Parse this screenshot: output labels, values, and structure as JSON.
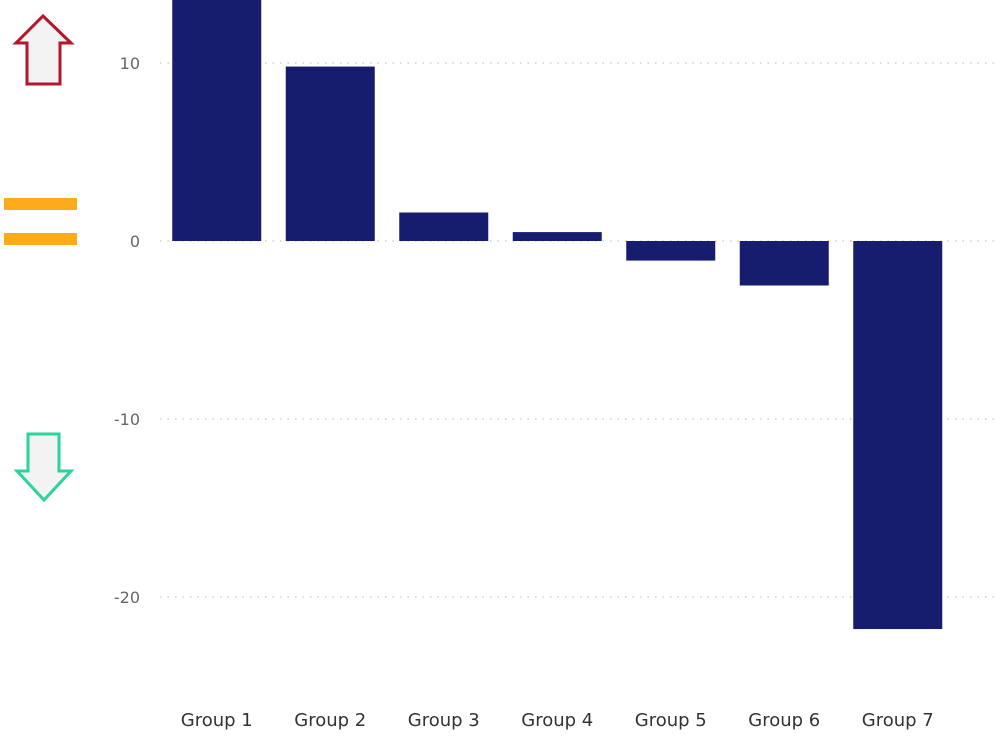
{
  "legend_icons": [
    {
      "name": "up-arrow-icon",
      "meaning": "increase",
      "color": "#b5162b",
      "fill": "#f3f3f3"
    },
    {
      "name": "equal-icon",
      "meaning": "no change",
      "color": "#fdaa1b"
    },
    {
      "name": "down-arrow-icon",
      "meaning": "decrease",
      "color": "#2bd49a",
      "fill": "#f3f3f3"
    }
  ],
  "colors": {
    "bar": "#161c6e",
    "grid": "#c8c8c8"
  },
  "chart_data": {
    "type": "bar",
    "categories": [
      "Group 1",
      "Group 2",
      "Group 3",
      "Group 4",
      "Group 5",
      "Group 6",
      "Group 7"
    ],
    "values": [
      14,
      9.8,
      1.6,
      0.5,
      -1.1,
      -2.5,
      -21.8
    ],
    "title": "",
    "xlabel": "",
    "ylabel": "",
    "ylim": [
      -24,
      14
    ],
    "yticks": [
      10,
      0,
      -10,
      -20
    ],
    "ytick_labels": [
      "10",
      "0",
      "-10",
      "-20"
    ],
    "grid": true,
    "legend": "none"
  }
}
